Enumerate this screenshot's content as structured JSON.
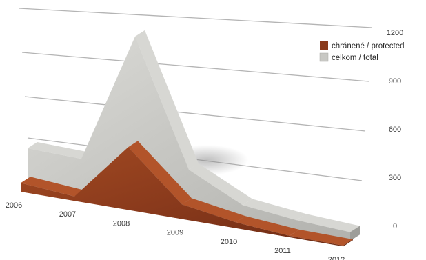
{
  "chart_data": {
    "type": "area",
    "title": "",
    "xlabel": "",
    "ylabel": "",
    "x": [
      "2006",
      "2007",
      "2008",
      "2009",
      "2010",
      "2011",
      "2012"
    ],
    "ylim": [
      0,
      1200
    ],
    "yticks": [
      "0",
      "300",
      "600",
      "900",
      "1200"
    ],
    "series": [
      {
        "name": "chránené / protected",
        "color": "#8a3a1c",
        "values": [
          60,
          30,
          430,
          100,
          40,
          10,
          5
        ]
      },
      {
        "name": "celkom / total",
        "color": "#c8c8c4",
        "values": [
          260,
          250,
          1150,
          300,
          120,
          80,
          60
        ]
      }
    ],
    "legend": "top-right",
    "grid": true
  }
}
